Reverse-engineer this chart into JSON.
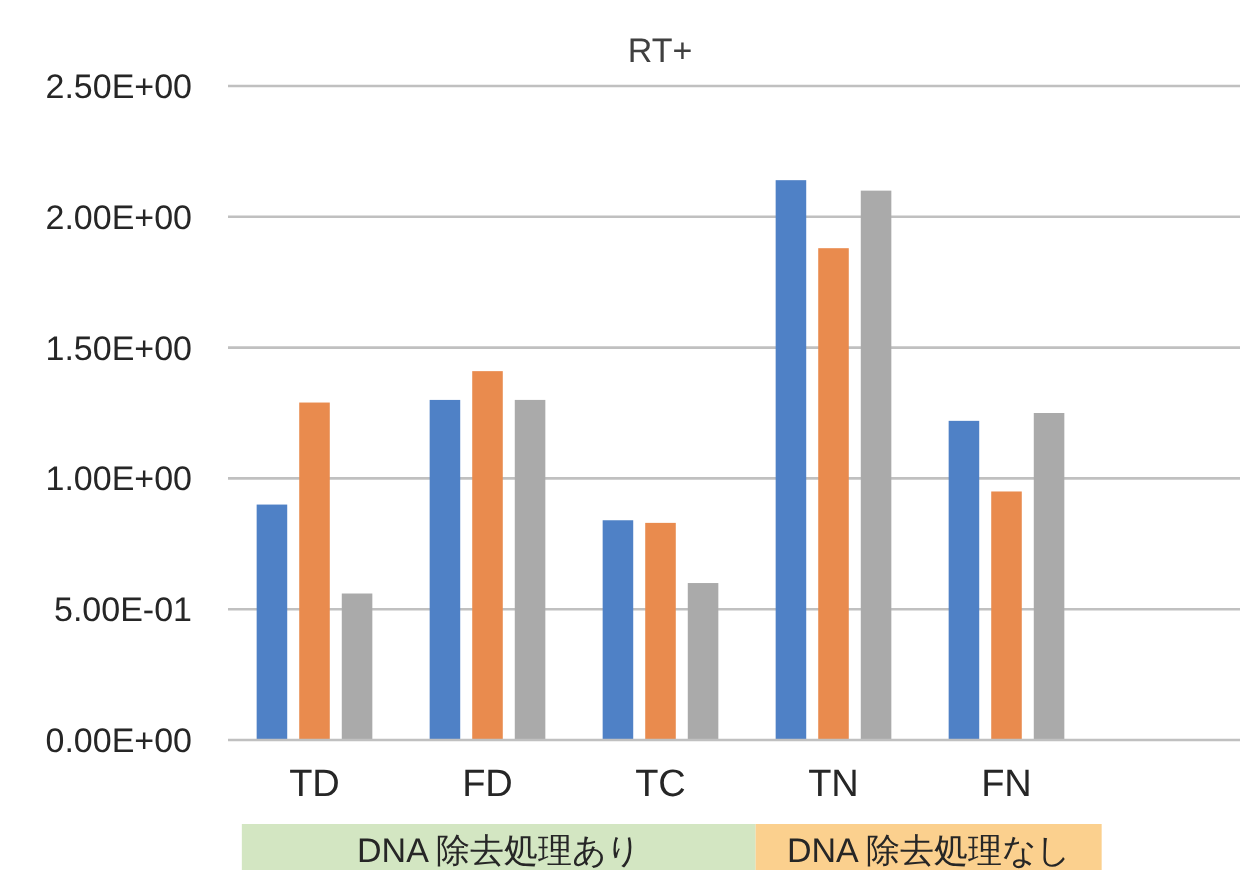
{
  "chart_data": {
    "type": "bar",
    "title": "RT+",
    "categories": [
      "TD",
      "FD",
      "TC",
      "TN",
      "FN",
      null
    ],
    "series": [
      {
        "color": "#4f81c6",
        "values": [
          0.9,
          1.3,
          0.84,
          2.14,
          1.22,
          null
        ]
      },
      {
        "color": "#e98b4e",
        "values": [
          1.29,
          1.41,
          0.83,
          1.88,
          0.95,
          null
        ]
      },
      {
        "color": "#aaaaaa",
        "values": [
          0.56,
          1.3,
          0.6,
          2.1,
          1.25,
          null
        ]
      }
    ],
    "ylim": [
      0,
      2.5
    ],
    "yticks": [
      {
        "value": 0,
        "label": "0.00E+00"
      },
      {
        "value": 0.5,
        "label": "5.00E-01"
      },
      {
        "value": 1,
        "label": "1.00E+00"
      },
      {
        "value": 1.5,
        "label": "1.50E+00"
      },
      {
        "value": 2,
        "label": "2.00E+00"
      },
      {
        "value": 2.5,
        "label": "2.50E+00"
      }
    ],
    "grid": "y",
    "annotations": [
      "DNA 除去処理あり",
      "DNA 除去処理なし"
    ]
  }
}
